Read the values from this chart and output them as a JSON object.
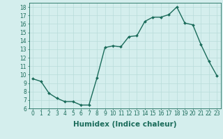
{
  "x": [
    0,
    1,
    2,
    3,
    4,
    5,
    6,
    7,
    8,
    9,
    10,
    11,
    12,
    13,
    14,
    15,
    16,
    17,
    18,
    19,
    20,
    21,
    22,
    23
  ],
  "y": [
    9.5,
    9.2,
    7.8,
    7.2,
    6.8,
    6.8,
    6.4,
    6.4,
    9.6,
    13.2,
    13.4,
    13.3,
    14.5,
    14.6,
    16.3,
    16.8,
    16.8,
    17.1,
    18.0,
    16.1,
    15.9,
    13.6,
    11.6,
    9.9
  ],
  "line_color": "#1a6b5a",
  "marker": "D",
  "marker_size": 2.0,
  "linewidth": 1.0,
  "bg_color": "#d4eeed",
  "grid_color": "#b8dcda",
  "xlabel": "Humidex (Indice chaleur)",
  "xlim": [
    -0.5,
    23.5
  ],
  "ylim": [
    6,
    18.5
  ],
  "yticks": [
    6,
    7,
    8,
    9,
    10,
    11,
    12,
    13,
    14,
    15,
    16,
    17,
    18
  ],
  "xticks": [
    0,
    1,
    2,
    3,
    4,
    5,
    6,
    7,
    8,
    9,
    10,
    11,
    12,
    13,
    14,
    15,
    16,
    17,
    18,
    19,
    20,
    21,
    22,
    23
  ],
  "tick_label_fontsize": 5.5,
  "xlabel_fontsize": 7.5
}
